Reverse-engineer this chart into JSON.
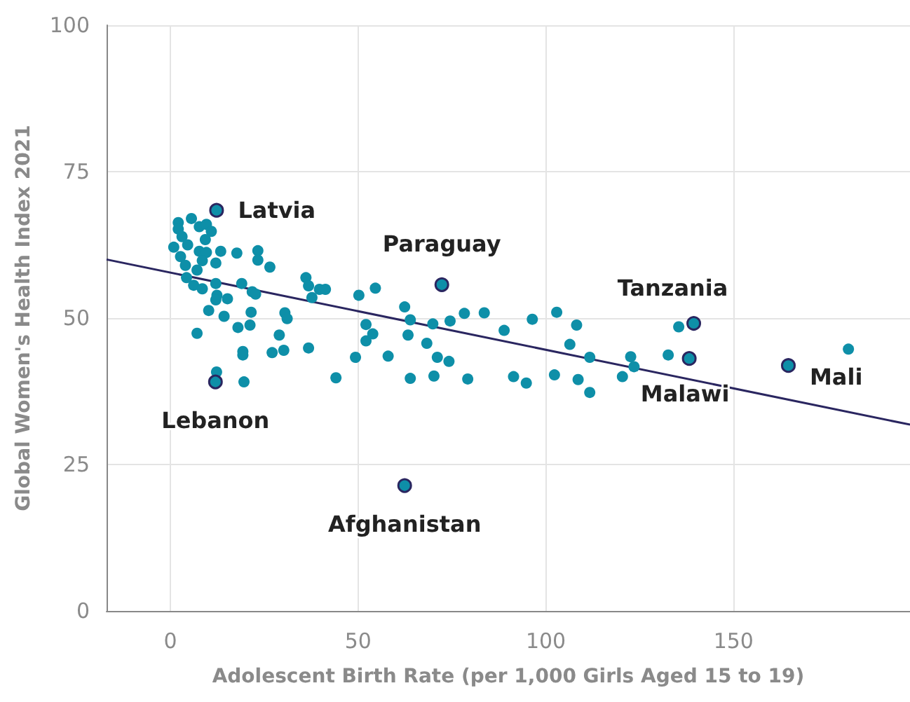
{
  "chart_data": {
    "type": "scatter",
    "xlabel": "Adolescent Birth Rate (per 1,000 Girls Aged 15 to 19)",
    "ylabel": "Global Women's Health Index 2021",
    "xlim": [
      -17,
      197
    ],
    "xticks": [
      0,
      50,
      100,
      150
    ],
    "ylim": [
      0,
      100
    ],
    "yticks": [
      0,
      25,
      50,
      75,
      100
    ],
    "grid": true,
    "marker": "circle",
    "series": [
      {
        "color": "#0e8fa8",
        "x": [
          2.1,
          2.1,
          3.1,
          0.9,
          4.6,
          2.7,
          4.0,
          4.3,
          5.6,
          7.7,
          9.6,
          10.9,
          9.3,
          7.7,
          9.6,
          8.5,
          7.1,
          6.2,
          8.5,
          10.2,
          7.1,
          12.1,
          13.4,
          12.1,
          12.4,
          12.1,
          14.3,
          15.2,
          17.7,
          19.0,
          23.3,
          23.3,
          26.5,
          21.8,
          22.7,
          21.5,
          18.0,
          21.2,
          19.3,
          19.3,
          19.6,
          12.3,
          27.1,
          29.0,
          30.2,
          30.5,
          31.1,
          36.1,
          36.8,
          37.7,
          39.7,
          41.3,
          36.8,
          44.1,
          49.3,
          50.2,
          54.6,
          52.1,
          52.1,
          53.9,
          58.0,
          62.4,
          63.9,
          63.3,
          63.9,
          68.3,
          69.9,
          71.1,
          70.2,
          74.2,
          74.5,
          78.3,
          79.2,
          83.6,
          88.9,
          91.4,
          94.8,
          96.4,
          102.3,
          102.9,
          106.4,
          108.2,
          108.6,
          111.7,
          111.7,
          120.4,
          122.6,
          123.5,
          132.6,
          135.4,
          180.6
        ],
        "values": [
          66.3,
          65.2,
          63.9,
          62.1,
          62.5,
          60.5,
          59.0,
          56.9,
          67.0,
          65.6,
          66.0,
          64.8,
          63.4,
          61.4,
          61.2,
          59.8,
          58.2,
          55.6,
          55.0,
          51.3,
          47.4,
          59.4,
          61.4,
          55.9,
          53.9,
          53.1,
          50.3,
          53.3,
          61.1,
          55.9,
          61.5,
          59.9,
          58.7,
          54.5,
          54.1,
          51.0,
          48.4,
          48.8,
          44.3,
          43.7,
          39.1,
          40.8,
          44.1,
          47.1,
          44.5,
          50.9,
          49.9,
          56.9,
          55.5,
          53.5,
          54.9,
          54.9,
          44.9,
          39.8,
          43.3,
          53.9,
          55.1,
          48.9,
          46.1,
          47.3,
          43.5,
          51.9,
          49.7,
          47.1,
          39.7,
          45.7,
          49.0,
          43.3,
          40.1,
          42.6,
          49.5,
          50.8,
          39.6,
          50.9,
          47.9,
          40.0,
          38.9,
          49.8,
          40.3,
          51.0,
          45.5,
          48.8,
          39.5,
          43.3,
          37.3,
          40.0,
          43.4,
          41.7,
          43.7,
          48.5,
          44.7
        ]
      },
      {
        "type": "line",
        "color": "#2a2660",
        "marker": "none",
        "x": [
          -17,
          197
        ],
        "values": [
          60.0,
          31.8
        ]
      }
    ],
    "annotations": [
      {
        "text": "Latvia",
        "x": 12.3,
        "y": 68.4
      },
      {
        "text": "Lebanon",
        "x": 12.0,
        "y": 39.1
      },
      {
        "text": "Paraguay",
        "x": 72.3,
        "y": 55.7
      },
      {
        "text": "Afghanistan",
        "x": 62.4,
        "y": 21.4
      },
      {
        "text": "Tanzania",
        "x": 139.4,
        "y": 49.1
      },
      {
        "text": "Malawi",
        "x": 138.2,
        "y": 43.1
      },
      {
        "text": "Mali",
        "x": 164.6,
        "y": 41.9
      }
    ]
  }
}
